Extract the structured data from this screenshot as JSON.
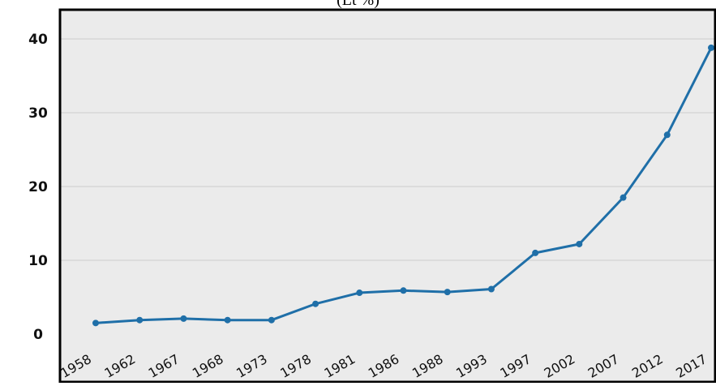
{
  "chart_data": {
    "type": "line",
    "title": "(Lt %)",
    "xlabel": "",
    "ylabel": "",
    "categories": [
      "1958",
      "1962",
      "1967",
      "1968",
      "1973",
      "1978",
      "1981",
      "1986",
      "1988",
      "1993",
      "1997",
      "2002",
      "2007",
      "2012",
      "2017"
    ],
    "series": [
      {
        "values": [
          1.5,
          1.9,
          2.1,
          1.9,
          1.9,
          4.1,
          5.6,
          5.9,
          5.7,
          6.1,
          11.0,
          12.2,
          18.5,
          27.0,
          38.8
        ]
      }
    ],
    "ylim": [
      0,
      40
    ],
    "yticks": [
      "0",
      "10",
      "20",
      "30",
      "40"
    ],
    "grid": true,
    "legend": "none",
    "colors": {
      "line": "#1f6fa8",
      "plot_bg": "#ebebeb",
      "grid": "#d4d4d4",
      "frame": "#000000"
    }
  }
}
